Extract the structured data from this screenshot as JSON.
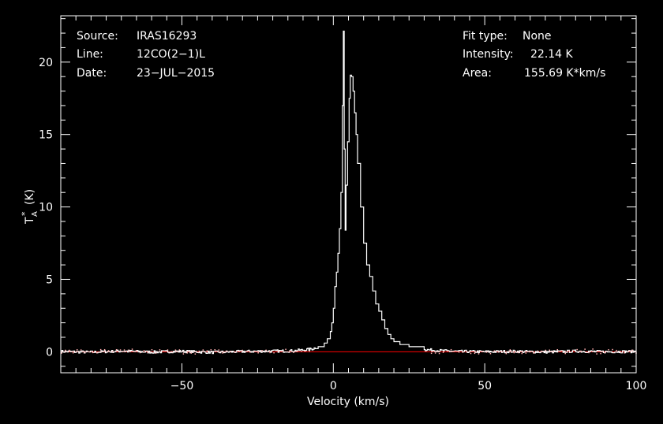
{
  "header": {
    "left": [
      {
        "key": "Source:",
        "value": "IRAS16293"
      },
      {
        "key": "Line:",
        "value": "12CO(2−1)L"
      },
      {
        "key": "Date:",
        "value": "23−JUL−2015"
      }
    ],
    "right": [
      {
        "key": "Fit type:",
        "value": "None"
      },
      {
        "key": "Intensity:",
        "value": "22.14 K"
      },
      {
        "key": "Area:",
        "value": "155.69 K*km/s"
      }
    ]
  },
  "chart_data": {
    "type": "line",
    "xlabel": "Velocity (km/s)",
    "ylabel_main": "T",
    "ylabel_sub": "A",
    "ylabel_sup": "*",
    "ylabel_unit": "(K)",
    "xlim": [
      -90,
      100
    ],
    "ylim": [
      -1.45,
      23.2
    ],
    "xticks": [
      {
        "v": -50,
        "label": "−50"
      },
      {
        "v": 0,
        "label": "0"
      },
      {
        "v": 50,
        "label": "50"
      },
      {
        "v": 100,
        "label": "100"
      }
    ],
    "yticks": [
      {
        "v": 0,
        "label": "0"
      },
      {
        "v": 5,
        "label": "5"
      },
      {
        "v": 10,
        "label": "10"
      },
      {
        "v": 15,
        "label": "15"
      },
      {
        "v": 20,
        "label": "20"
      }
    ],
    "x_minor_step": 5,
    "y_minor_step": 1,
    "baseline": 0,
    "baseline_color": "#ff0000",
    "line_color": "#ffffff",
    "series": [
      {
        "points": [
          [
            -90,
            0.02
          ],
          [
            -80,
            -0.03
          ],
          [
            -70,
            0.05
          ],
          [
            -60,
            -0.02
          ],
          [
            -50,
            0.03
          ],
          [
            -40,
            -0.04
          ],
          [
            -30,
            0.02
          ],
          [
            -20,
            0.05
          ],
          [
            -15,
            0.05
          ],
          [
            -10,
            0.12
          ],
          [
            -7,
            0.2
          ],
          [
            -5,
            0.35
          ],
          [
            -3,
            0.6
          ],
          [
            -2,
            0.9
          ],
          [
            -1,
            1.4
          ],
          [
            -0.5,
            2.0
          ],
          [
            0,
            3.0
          ],
          [
            0.5,
            4.5
          ],
          [
            1,
            5.5
          ],
          [
            1.5,
            6.8
          ],
          [
            2,
            8.5
          ],
          [
            2.5,
            11.0
          ],
          [
            3,
            17.0
          ],
          [
            3.3,
            22.14
          ],
          [
            3.6,
            14.0
          ],
          [
            3.9,
            8.4
          ],
          [
            4.2,
            11.5
          ],
          [
            4.7,
            14.5
          ],
          [
            5.2,
            17.5
          ],
          [
            5.6,
            19.1
          ],
          [
            6,
            19.0
          ],
          [
            6.5,
            18.0
          ],
          [
            7,
            16.5
          ],
          [
            7.5,
            15.0
          ],
          [
            8,
            13.0
          ],
          [
            9,
            10.0
          ],
          [
            10,
            7.5
          ],
          [
            11,
            6.0
          ],
          [
            12,
            5.2
          ],
          [
            13,
            4.2
          ],
          [
            14,
            3.3
          ],
          [
            15,
            2.8
          ],
          [
            16,
            2.2
          ],
          [
            17,
            1.6
          ],
          [
            18,
            1.2
          ],
          [
            19,
            0.9
          ],
          [
            20,
            0.7
          ],
          [
            22,
            0.5
          ],
          [
            25,
            0.35
          ],
          [
            30,
            0.15
          ],
          [
            35,
            0.08
          ],
          [
            40,
            0.03
          ],
          [
            50,
            0.0
          ],
          [
            60,
            0.03
          ],
          [
            70,
            -0.02
          ],
          [
            80,
            0.04
          ],
          [
            90,
            0.0
          ],
          [
            100,
            0.02
          ]
        ]
      }
    ]
  }
}
